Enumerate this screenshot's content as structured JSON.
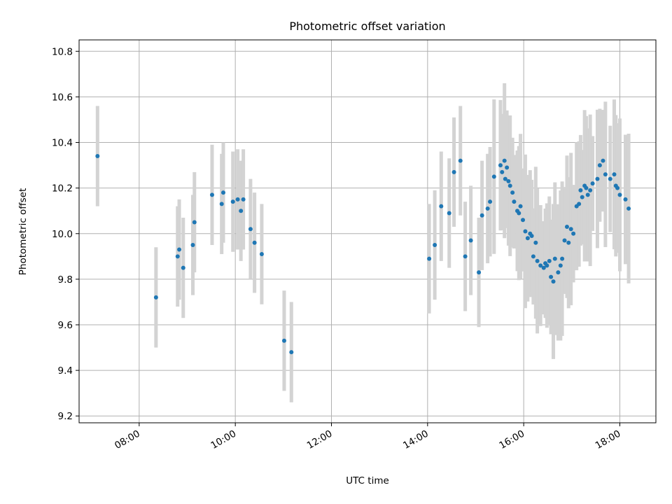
{
  "chart_data": {
    "type": "scatter",
    "title": "Photometric offset variation",
    "xlabel": "UTC time",
    "ylabel": "Photometric offset",
    "x_ticks": [
      "08:00",
      "10:00",
      "12:00",
      "14:00",
      "16:00",
      "18:00"
    ],
    "y_ticks": [
      "9.2",
      "9.4",
      "9.6",
      "9.8",
      "10.0",
      "10.2",
      "10.4",
      "10.6",
      "10.8"
    ],
    "xlim": [
      "06:45",
      "18:45"
    ],
    "ylim": [
      9.17,
      10.85
    ],
    "grid": true,
    "colors": {
      "point": "#1f77b4",
      "errorbar": "#d3d3d3",
      "grid": "#b0b0b0"
    },
    "series": [
      {
        "x": [
          "07:08",
          "08:21",
          "08:48",
          "08:50",
          "08:55",
          "09:07",
          "09:09",
          "09:31",
          "09:43",
          "09:45",
          "09:57",
          "10:03",
          "10:07",
          "10:10",
          "10:19",
          "10:24",
          "10:33",
          "11:01",
          "11:10",
          "14:02",
          "14:09",
          "14:17",
          "14:27",
          "14:33",
          "14:41",
          "14:47",
          "14:54",
          "15:04",
          "15:08",
          "15:15",
          "15:18",
          "15:23",
          "15:31",
          "15:33",
          "15:36",
          "15:37",
          "15:39",
          "15:41",
          "15:43",
          "15:46",
          "15:48",
          "15:52",
          "15:54",
          "15:56",
          "15:59",
          "16:02",
          "16:05",
          "16:08",
          "16:10",
          "16:12",
          "16:15",
          "16:17",
          "16:21",
          "16:25",
          "16:27",
          "16:29",
          "16:32",
          "16:34",
          "16:37",
          "16:39",
          "16:43",
          "16:46",
          "16:48",
          "16:51",
          "16:54",
          "16:56",
          "16:59",
          "17:02",
          "17:06",
          "17:09",
          "17:11",
          "17:13",
          "17:16",
          "17:18",
          "17:20",
          "17:23",
          "17:26",
          "17:32",
          "17:35",
          "17:39",
          "17:42",
          "17:48",
          "17:53",
          "17:55",
          "17:57",
          "18:00",
          "18:07",
          "18:11"
        ],
        "y": [
          10.34,
          9.72,
          9.9,
          9.93,
          9.85,
          9.95,
          10.05,
          10.17,
          10.13,
          10.18,
          10.14,
          10.15,
          10.1,
          10.15,
          10.02,
          9.96,
          9.91,
          9.53,
          9.48,
          9.89,
          9.95,
          10.12,
          10.09,
          10.27,
          10.32,
          9.9,
          9.97,
          9.83,
          10.08,
          10.11,
          10.14,
          10.25,
          10.3,
          10.27,
          10.32,
          10.24,
          10.29,
          10.23,
          10.21,
          10.18,
          10.14,
          10.1,
          10.09,
          10.12,
          10.06,
          10.01,
          9.98,
          10.0,
          9.99,
          9.9,
          9.96,
          9.88,
          9.86,
          9.85,
          9.87,
          9.86,
          9.88,
          9.81,
          9.79,
          9.89,
          9.83,
          9.86,
          9.89,
          9.97,
          10.03,
          9.96,
          10.02,
          10.0,
          10.12,
          10.13,
          10.19,
          10.16,
          10.21,
          10.2,
          10.17,
          10.19,
          10.22,
          10.24,
          10.3,
          10.32,
          10.26,
          10.24,
          10.26,
          10.21,
          10.2,
          10.17,
          10.15,
          10.11
        ]
      }
    ]
  }
}
